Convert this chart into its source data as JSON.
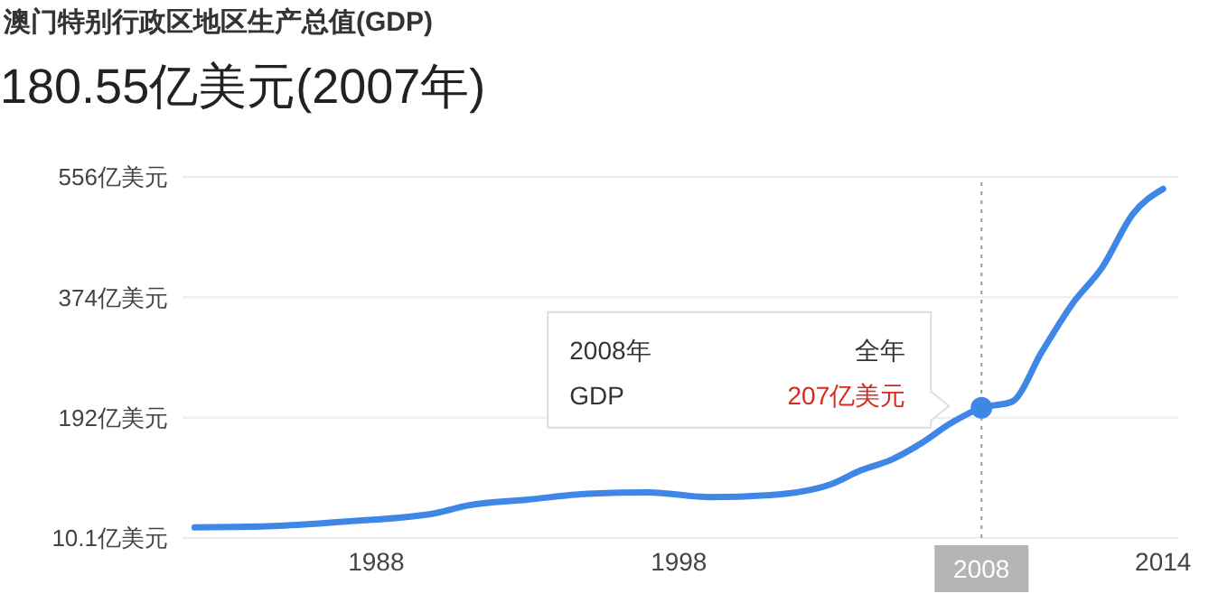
{
  "chart_data": {
    "type": "line",
    "title": "澳门特别行政区地区生产总值(GDP)",
    "subtitle": "180.55亿美元(2007年)",
    "x": [
      1982,
      1985,
      1987,
      1990,
      1991,
      1993,
      1995,
      1997,
      1999,
      2001,
      2003,
      2004,
      2005,
      2006,
      2007,
      2008,
      2009,
      2010,
      2011,
      2012,
      2013,
      2014
    ],
    "series": [
      {
        "color": "#3f87e6",
        "values": [
          26,
          29,
          35,
          48,
          59,
          68,
          77,
          79,
          72,
          75,
          91,
          112,
          128,
          153,
          184,
          207,
          216,
          292,
          364,
          420,
          500,
          538
        ]
      }
    ],
    "xlim": [
      1981.6,
      2014.5
    ],
    "xticks": [
      1988,
      1998,
      2014
    ],
    "ylim": [
      10.1,
      556
    ],
    "yticks": [
      {
        "value": 10.1,
        "label": "10.1亿美元"
      },
      {
        "value": 192,
        "label": "192亿美元"
      },
      {
        "value": 374,
        "label": "374亿美元"
      },
      {
        "value": 556,
        "label": "556亿美元"
      }
    ],
    "grid": "y",
    "marker": "none",
    "line_style": "solid",
    "legend": false,
    "ref_lines": [
      {
        "axis": "x",
        "value": 2008,
        "label": "2008",
        "line_style": "dotted",
        "color": "#999999"
      }
    ],
    "annotations": [
      "2008年",
      "全年",
      "GDP",
      {
        "text": "207亿美元",
        "x": 2008,
        "y": 207
      }
    ]
  }
}
